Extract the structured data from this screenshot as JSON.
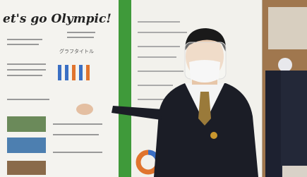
{
  "poster": {
    "title": "et's go Olympic!",
    "graph_title": "グラフタイトル"
  }
}
